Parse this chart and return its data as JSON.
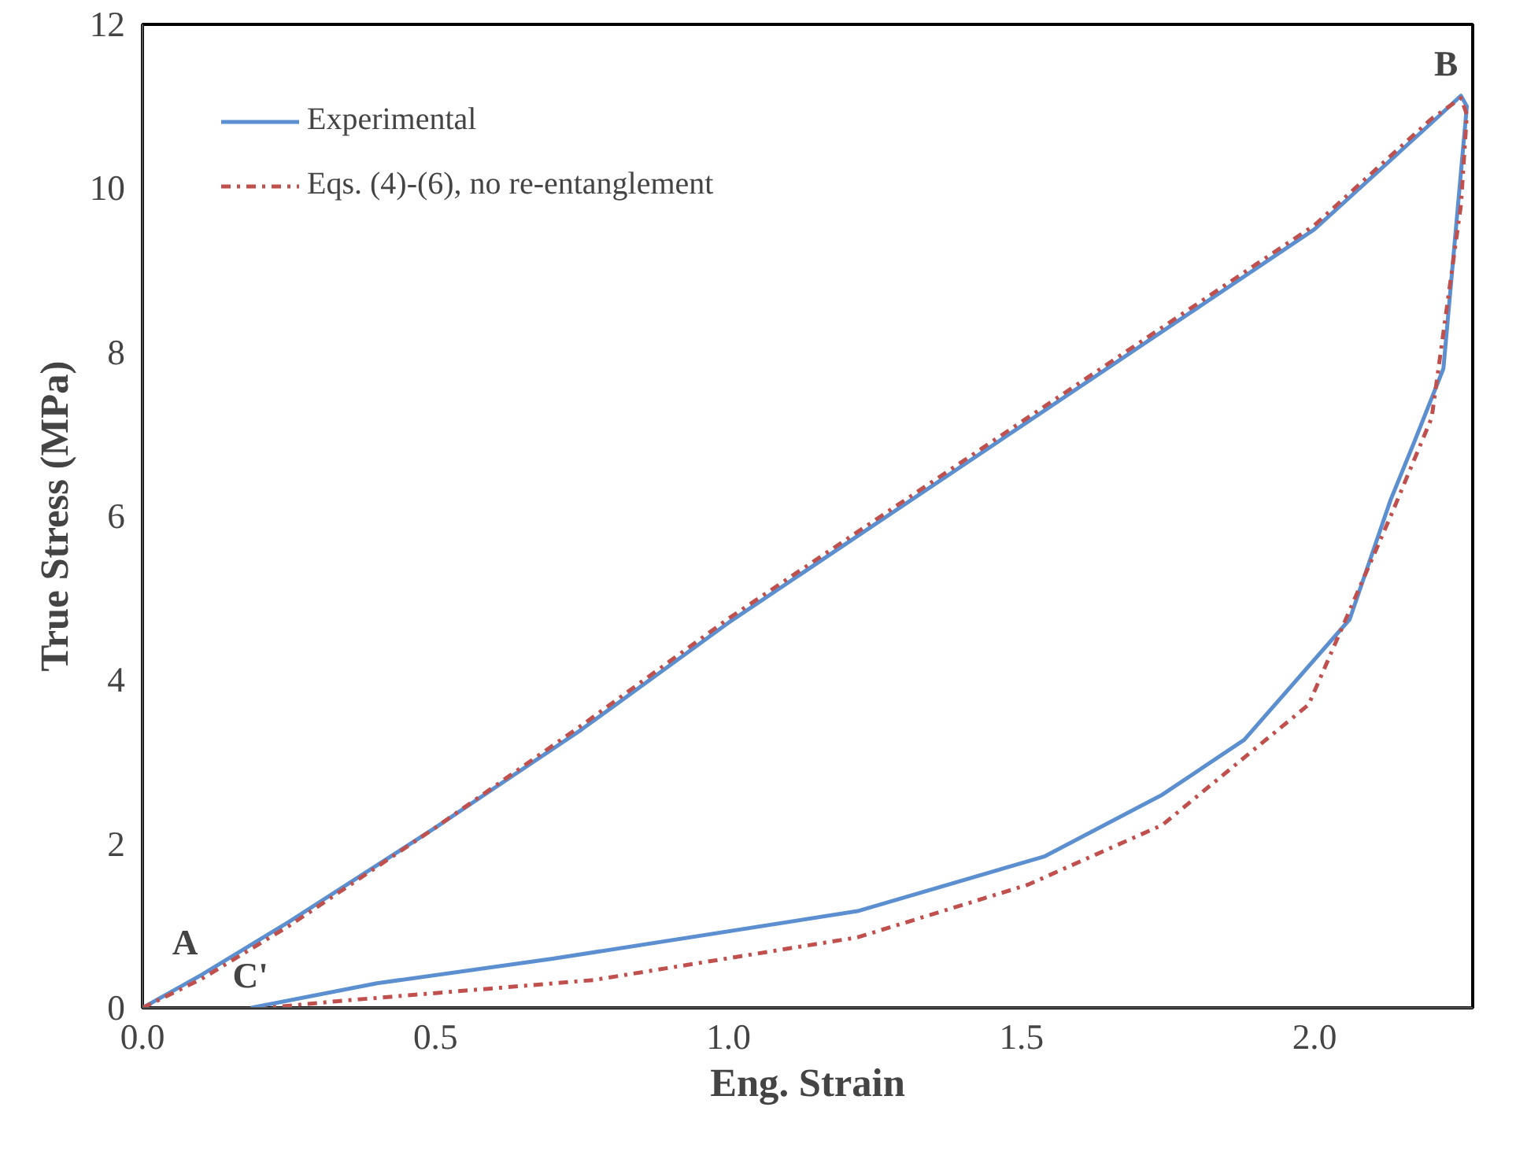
{
  "chart_data": {
    "type": "line",
    "xlabel": "Eng. Strain",
    "ylabel": "True Stress (MPa)",
    "xlim": [
      0,
      2.27
    ],
    "ylim": [
      0,
      12
    ],
    "xticks": [
      {
        "value": 0,
        "label": "0.0"
      },
      {
        "value": 0.5,
        "label": "0.5"
      },
      {
        "value": 1,
        "label": "1.0"
      },
      {
        "value": 1.5,
        "label": "1.5"
      },
      {
        "value": 2,
        "label": "2.0"
      }
    ],
    "yticks": [
      0,
      2,
      4,
      6,
      8,
      10,
      12
    ],
    "grid": false,
    "legend": "top left",
    "marker": "none",
    "series": [
      {
        "name": "Experimental",
        "color": "#5b8fd0",
        "line_style": "solid",
        "x": [
          0,
          0.1,
          0.25,
          0.5,
          0.75,
          1.0,
          1.25,
          1.5,
          1.75,
          2.0,
          2.2,
          2.25,
          2.26,
          2.25,
          2.22,
          2.17,
          2.13,
          2.06,
          1.88,
          1.74,
          1.54,
          1.22,
          0.7,
          0.4,
          0.185
        ],
        "values": [
          0,
          0.4,
          1.05,
          2.2,
          3.4,
          4.7,
          5.9,
          7.1,
          8.3,
          9.5,
          10.8,
          11.13,
          11.0,
          10.2,
          7.8,
          6.9,
          6.2,
          4.74,
          3.27,
          2.6,
          1.85,
          1.18,
          0.6,
          0.3,
          0
        ]
      },
      {
        "name": "Eqs. (4)-(6), no re-entanglement",
        "color": "#c0504d",
        "line_style": "dashdot",
        "x": [
          0,
          0.1,
          0.25,
          0.5,
          0.75,
          1.0,
          1.25,
          1.5,
          1.75,
          2.0,
          2.2,
          2.25,
          2.26,
          2.25,
          2.2,
          2.13,
          1.99,
          1.74,
          1.51,
          1.22,
          0.77,
          0.33,
          0.21
        ],
        "values": [
          0,
          0.35,
          1.0,
          2.2,
          3.45,
          4.75,
          5.95,
          7.15,
          8.35,
          9.55,
          10.85,
          11.1,
          10.9,
          9.8,
          7.2,
          6.0,
          3.7,
          2.23,
          1.5,
          0.86,
          0.34,
          0.08,
          0
        ]
      }
    ],
    "annotations": [
      {
        "text": "A",
        "x": 0.1,
        "y": 0.4
      },
      {
        "text": "B",
        "x": 2.25,
        "y": 11.13
      },
      {
        "text": "C'",
        "x": 0.22,
        "y": 0
      }
    ]
  }
}
